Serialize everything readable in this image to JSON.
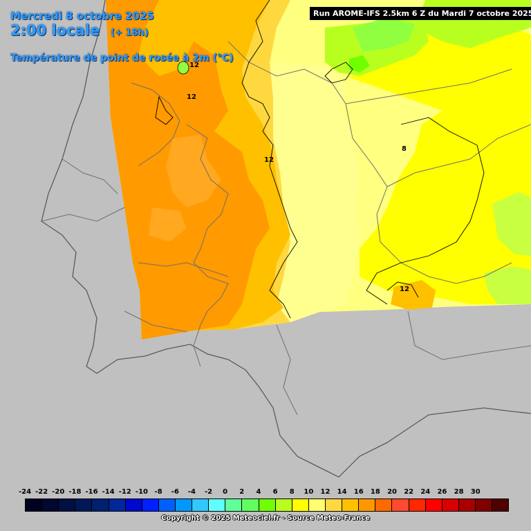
{
  "header": {
    "date": "Mercredi 8 octobre 2025",
    "time": "2:00 locale",
    "lead": "(+ 18h)",
    "variable": "Température de point de rosée à 2m (°C)"
  },
  "run_info": "Run AROME-IFS 2.5km 6 Z du Mardi 7 octobre 2025",
  "contour_labels": [
    "12",
    "12",
    "12",
    "8",
    "12"
  ],
  "legend": {
    "labels": [
      "-24",
      "-22",
      "-20",
      "-18",
      "-16",
      "-14",
      "-12",
      "-10",
      "-8",
      "-6",
      "-4",
      "-2",
      "0",
      "2",
      "4",
      "6",
      "8",
      "10",
      "12",
      "14",
      "16",
      "18",
      "20",
      "22",
      "24",
      "26",
      "28",
      "30"
    ],
    "colors": [
      "#000020",
      "#000830",
      "#001040",
      "#001858",
      "#002070",
      "#00289c",
      "#0008d0",
      "#0020ff",
      "#0060ff",
      "#0098ff",
      "#30c8ff",
      "#60ffff",
      "#60ff98",
      "#60ff60",
      "#70ff00",
      "#b8ff20",
      "#ffff00",
      "#ffff70",
      "#ffd840",
      "#ffc000",
      "#ff9800",
      "#ff6a00",
      "#ff4a30",
      "#ff2800",
      "#ff0000",
      "#d80000",
      "#a80000",
      "#800000",
      "#500000"
    ]
  },
  "palette": {
    "background": "#c0c0c0",
    "header_text": "#2f9bff",
    "run_box_bg": "#000000"
  },
  "copyright": "Copyright © 2025 Meteociel.fr - Source Meteo-France"
}
